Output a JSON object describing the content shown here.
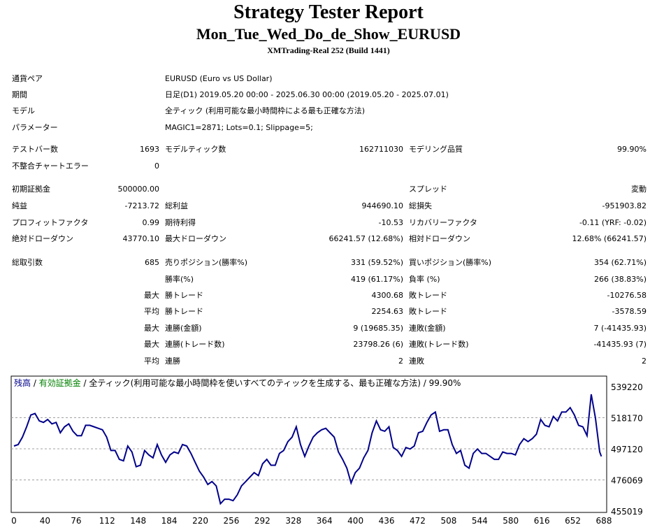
{
  "report": {
    "title": "Strategy Tester Report",
    "expert": "Mon_Tue_Wed_Do_de_Show_EURUSD",
    "server": "XMTrading-Real 252 (Build 1441)"
  },
  "settings": [
    {
      "label": "通貨ペア",
      "value": "EURUSD (Euro vs US Dollar)"
    },
    {
      "label": "期間",
      "value": "日足(D1) 2019.05.20 00:00 - 2025.06.30 00:00 (2019.05.20 - 2025.07.01)"
    },
    {
      "label": "モデル",
      "value": "全ティック (利用可能な最小時間枠による最も正確な方法)"
    },
    {
      "label": "パラメーター",
      "value": "MAGIC1=2871; Lots=0.1; Slippage=5;"
    }
  ],
  "results": {
    "bars_label": "テストバー数",
    "bars": "1693",
    "ticks_label": "モデルティック数",
    "ticks": "162711030",
    "quality_label": "モデリング品質",
    "quality": "99.90%",
    "mismatch_label": "不整合チャートエラー",
    "mismatch": "0",
    "deposit_label": "初期証拠金",
    "deposit": "500000.00",
    "spread_label": "スプレッド",
    "spread": "変動",
    "net_label": "純益",
    "net": "-7213.72",
    "gross_profit_label": "総利益",
    "gross_profit": "944690.10",
    "gross_loss_label": "総損失",
    "gross_loss": "-951903.82",
    "pf_label": "プロフィットファクタ",
    "pf": "0.99",
    "payoff_label": "期待利得",
    "payoff": "-10.53",
    "recovery_label": "リカバリーファクタ",
    "recovery": "-0.11 (YRF: -0.02)",
    "abs_dd_label": "絶対ドローダウン",
    "abs_dd": "43770.10",
    "max_dd_label": "最大ドローダウン",
    "max_dd": "66241.57 (12.68%)",
    "rel_dd_label": "相対ドローダウン",
    "rel_dd": "12.68% (66241.57)",
    "total_trades_label": "総取引数",
    "total_trades": "685",
    "short_label": "売りポジション(勝率%)",
    "short": "331 (59.52%)",
    "long_label": "買いポジション(勝率%)",
    "long": "354 (62.71%)",
    "win_pct_label": "勝率(%)",
    "win_pct": "419 (61.17%)",
    "loss_pct_label": "負率 (%)",
    "loss_pct": "266 (38.83%)",
    "largest_label": "最大",
    "largest_win_label": "勝トレード",
    "largest_win": "4300.68",
    "largest_loss_label": "敗トレード",
    "largest_loss": "-10276.58",
    "average_label": "平均",
    "average_win_label": "勝トレード",
    "average_win": "2254.63",
    "average_loss_label": "敗トレード",
    "average_loss": "-3578.59",
    "max_label1": "最大",
    "max_cons_wins_label": "連勝(金額)",
    "max_cons_wins": "9 (19685.35)",
    "max_cons_losses_label": "連敗(金額)",
    "max_cons_losses": "7 (-41435.93)",
    "max_label2": "最大",
    "max_cons_profit_label": "連勝(トレード数)",
    "max_cons_profit": "23798.26 (6)",
    "max_cons_loss_label": "連敗(トレード数)",
    "max_cons_loss": "-41435.93 (7)",
    "avg_label2": "平均",
    "avg_cons_wins_label": "連勝",
    "avg_cons_wins": "2",
    "avg_cons_losses_label": "連敗",
    "avg_cons_losses": "2"
  },
  "chart_legend": {
    "balance": "残高",
    "sep1": " / ",
    "equity": "有効証拠金",
    "sep2": " / ",
    "model": "全ティック(利用可能な最小時間枠を使いすべてのティックを生成する、最も正確な方法) / 99.90%"
  },
  "chart_data": {
    "type": "line",
    "x_ticks": [
      "0",
      "40",
      "76",
      "112",
      "148",
      "184",
      "220",
      "256",
      "292",
      "328",
      "364",
      "400",
      "436",
      "472",
      "508",
      "544",
      "580",
      "616",
      "652",
      "688"
    ],
    "y_ticks": [
      "539220",
      "518170",
      "497120",
      "476069",
      "455019"
    ],
    "ylim": [
      455019,
      539220
    ],
    "xlim": [
      0,
      700
    ],
    "series": [
      {
        "color": "#00008b",
        "x": [
          0,
          5,
          10,
          15,
          20,
          25,
          30,
          35,
          40,
          45,
          50,
          55,
          60,
          65,
          70,
          75,
          80,
          85,
          90,
          95,
          100,
          105,
          110,
          115,
          120,
          125,
          130,
          135,
          140,
          145,
          150,
          155,
          160,
          165,
          170,
          175,
          180,
          185,
          190,
          195,
          200,
          205,
          210,
          215,
          220,
          225,
          230,
          235,
          240,
          245,
          250,
          255,
          260,
          265,
          270,
          275,
          280,
          285,
          290,
          295,
          300,
          305,
          310,
          315,
          320,
          325,
          330,
          335,
          340,
          345,
          350,
          355,
          360,
          365,
          370,
          375,
          380,
          385,
          390,
          395,
          400,
          405,
          410,
          415,
          420,
          425,
          430,
          435,
          440,
          445,
          450,
          455,
          460,
          465,
          470,
          475,
          480,
          485,
          490,
          495,
          500,
          505,
          510,
          515,
          520,
          525,
          530,
          535,
          540,
          545,
          550,
          555,
          560,
          565,
          570,
          575,
          580,
          585,
          590,
          595,
          600,
          605,
          610,
          615,
          620,
          625,
          630,
          635,
          640,
          645,
          650,
          655,
          660,
          665,
          670,
          675,
          680,
          685,
          690,
          695,
          697
        ],
        "y": [
          499000,
          500000,
          505000,
          512000,
          520000,
          521000,
          516000,
          515000,
          517000,
          514000,
          515000,
          508000,
          512000,
          514000,
          509000,
          506000,
          506000,
          513000,
          513000,
          512000,
          511000,
          510000,
          505000,
          496000,
          496000,
          490000,
          489000,
          499000,
          495000,
          485000,
          486000,
          496000,
          493000,
          491000,
          500000,
          493000,
          488000,
          493000,
          495000,
          494000,
          500000,
          499000,
          494000,
          488000,
          482000,
          478000,
          473000,
          475000,
          472000,
          460000,
          463000,
          463000,
          462000,
          466000,
          472000,
          475000,
          478000,
          481000,
          479000,
          487000,
          490000,
          486000,
          486000,
          494000,
          496000,
          502000,
          505000,
          512000,
          500000,
          492000,
          499000,
          505000,
          508000,
          510000,
          511000,
          508000,
          505000,
          495000,
          490000,
          484000,
          474000,
          481000,
          484000,
          491000,
          496000,
          508000,
          516000,
          510000,
          509000,
          512000,
          498000,
          496000,
          492000,
          498000,
          497000,
          499000,
          508000,
          509000,
          515000,
          520000,
          522000,
          509000,
          510000,
          510000,
          500000,
          494000,
          496000,
          486000,
          484000,
          494000,
          497000,
          494000,
          494000,
          492000,
          490000,
          490000,
          495000,
          494000,
          494000,
          493000,
          500000,
          504000,
          502000,
          504000,
          507000,
          517000,
          513000,
          512000,
          519000,
          516000,
          522000,
          522000,
          525000,
          520000,
          513000,
          512000,
          506000,
          534000,
          518000,
          495000,
          492000
        ]
      }
    ]
  }
}
